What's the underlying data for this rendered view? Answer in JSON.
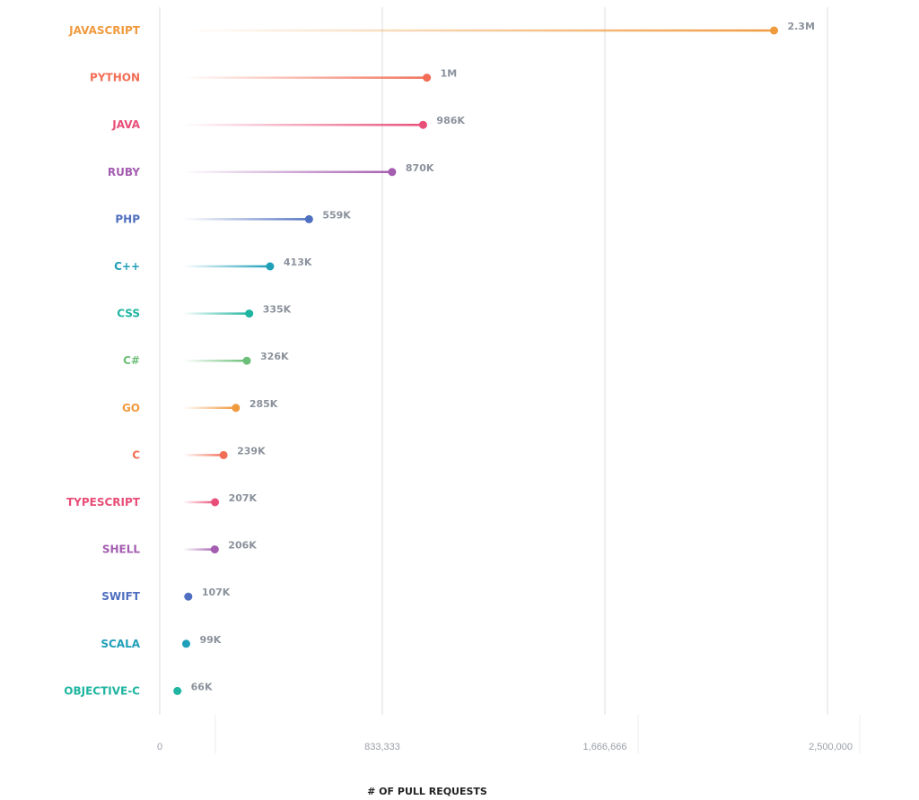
{
  "chart_data": {
    "type": "lollipop",
    "xlabel": "# OF PULL REQUESTS",
    "xlim": [
      0,
      2500000
    ],
    "xticks": [
      {
        "value": 0,
        "label": "0"
      },
      {
        "value": 833333,
        "label": "833,333"
      },
      {
        "value": 1666666,
        "label": "1,666,666"
      },
      {
        "value": 2500000,
        "label": "2,500,000"
      }
    ],
    "grid": true,
    "bars": [
      {
        "category": "JAVASCRIPT",
        "value": 2300000,
        "label": "2.3M",
        "color": "#f09a3e"
      },
      {
        "category": "PYTHON",
        "value": 1000000,
        "label": "1M",
        "color": "#f26d55"
      },
      {
        "category": "JAVA",
        "value": 986000,
        "label": "986K",
        "color": "#e84e78"
      },
      {
        "category": "RUBY",
        "value": 870000,
        "label": "870K",
        "color": "#a45db0"
      },
      {
        "category": "PHP",
        "value": 559000,
        "label": "559K",
        "color": "#4f6fc0"
      },
      {
        "category": "C++",
        "value": 413000,
        "label": "413K",
        "color": "#1f9fb8"
      },
      {
        "category": "CSS",
        "value": 335000,
        "label": "335K",
        "color": "#1fb5a0"
      },
      {
        "category": "C#",
        "value": 326000,
        "label": "326K",
        "color": "#6cbf78"
      },
      {
        "category": "GO",
        "value": 285000,
        "label": "285K",
        "color": "#f09a3e"
      },
      {
        "category": "C",
        "value": 239000,
        "label": "239K",
        "color": "#f26d55"
      },
      {
        "category": "TYPESCRIPT",
        "value": 207000,
        "label": "207K",
        "color": "#e84e78"
      },
      {
        "category": "SHELL",
        "value": 206000,
        "label": "206K",
        "color": "#a45db0"
      },
      {
        "category": "SWIFT",
        "value": 107000,
        "label": "107K",
        "color": "#4f6fc0"
      },
      {
        "category": "SCALA",
        "value": 99000,
        "label": "99K",
        "color": "#1f9fb8"
      },
      {
        "category": "OBJECTIVE-C",
        "value": 66000,
        "label": "66K",
        "color": "#1fb5a0"
      }
    ]
  }
}
